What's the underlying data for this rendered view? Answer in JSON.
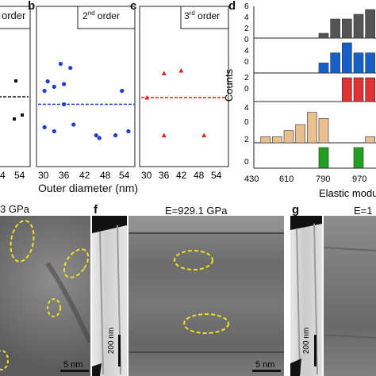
{
  "panels": {
    "a": {
      "order_label": "order",
      "tick54": "54",
      "tick4": "4"
    },
    "b": {
      "letter": "b",
      "order_base": "2",
      "order_sup": "nd",
      "order_rest": " order",
      "ticks": [
        "30",
        "36",
        "42",
        "48",
        "54"
      ]
    },
    "c": {
      "letter": "c",
      "order_base": "3",
      "order_sup": "rd",
      "order_rest": " order",
      "ticks": [
        "30",
        "36",
        "42",
        "48",
        "54"
      ]
    },
    "d": {
      "letter": "d",
      "ylabel": "Counts",
      "xlabel": "Elastic modu",
      "xticks": [
        "430",
        "610",
        "790",
        "970"
      ],
      "yticks": [
        "0",
        "2",
        "4",
        "6"
      ]
    }
  },
  "shared_xlabel": "Outer diameter (nm)",
  "tem": {
    "e": {
      "title": "3 GPa",
      "scale": "5 nm"
    },
    "f": {
      "letter": "f",
      "title": "E=929.1 GPa",
      "scale": "5 nm",
      "scale_vertical": "200 nm"
    },
    "g": {
      "letter": "g",
      "title": "E=1",
      "scale_vertical": "200 nm"
    }
  },
  "chart_data": [
    {
      "type": "scatter",
      "name": "panel-b",
      "x": [
        30,
        31,
        33,
        35,
        36,
        38,
        30,
        33,
        39,
        46,
        47,
        52,
        54,
        56,
        36
      ],
      "y": [
        0.55,
        0.62,
        0.58,
        0.75,
        0.6,
        0.72,
        0.28,
        0.25,
        0.3,
        0.22,
        0.2,
        0.22,
        0.55,
        0.25,
        0.45
      ],
      "mean": 0.45,
      "xlabel": "Outer diameter (nm)",
      "color": "#1f3fd0"
    },
    {
      "type": "scatter",
      "name": "panel-c",
      "x": [
        30,
        36,
        42,
        36,
        50
      ],
      "y": [
        0.5,
        0.68,
        0.7,
        0.22,
        0.22
      ],
      "mean": 0.5,
      "color": "#e02020"
    },
    {
      "type": "bar",
      "name": "panel-d",
      "ylabel": "Counts",
      "xlabel": "Elastic modu",
      "xlim": [
        430,
        1060
      ],
      "series": [
        {
          "color": "#555555",
          "x": [
            790,
            850,
            910,
            970,
            1030
          ],
          "values": [
            1,
            4,
            4,
            5,
            6
          ]
        },
        {
          "color": "#1560c8",
          "x": [
            790,
            850,
            910,
            970,
            1030
          ],
          "values": [
            1,
            2,
            3,
            2,
            2
          ]
        },
        {
          "color": "#e03030",
          "x": [
            910,
            970,
            1030
          ],
          "values": [
            2,
            2,
            2
          ]
        },
        {
          "color": "#e8c090",
          "x": [
            490,
            550,
            610,
            670,
            730,
            790,
            1030
          ],
          "values": [
            1,
            1,
            2,
            3,
            5,
            4,
            1
          ]
        },
        {
          "color": "#22a022",
          "x": [
            790,
            970
          ],
          "values": [
            2,
            2
          ]
        }
      ]
    }
  ]
}
